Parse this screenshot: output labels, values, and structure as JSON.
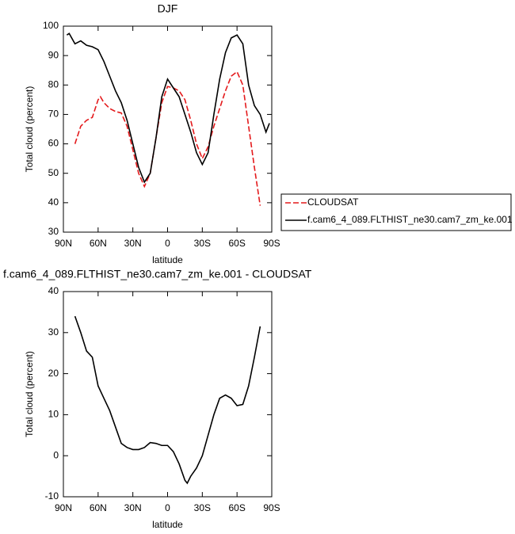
{
  "chart_data": [
    {
      "type": "line",
      "title": "DJF",
      "xlabel": "latitude",
      "ylabel": "Total cloud (percent)",
      "xlim": [
        90,
        -90
      ],
      "xticks": [
        {
          "value": 90,
          "label": "90N"
        },
        {
          "value": 60,
          "label": "60N"
        },
        {
          "value": 30,
          "label": "30N"
        },
        {
          "value": 0,
          "label": "0"
        },
        {
          "value": -30,
          "label": "30S"
        },
        {
          "value": -60,
          "label": "60S"
        },
        {
          "value": -90,
          "label": "90S"
        }
      ],
      "ylim": [
        30,
        100
      ],
      "yticks": [
        30,
        40,
        50,
        60,
        70,
        80,
        90,
        100
      ],
      "legend": "outside-right",
      "series": [
        {
          "name": "CLOUDSAT",
          "color": "#e41a1c",
          "style": "dashed",
          "x": [
            80,
            75,
            70,
            65,
            60,
            58,
            55,
            50,
            45,
            40,
            35,
            30,
            25,
            20,
            15,
            10,
            5,
            0,
            -5,
            -10,
            -15,
            -20,
            -25,
            -30,
            -35,
            -40,
            -45,
            -50,
            -55,
            -60,
            -65,
            -70,
            -75,
            -80
          ],
          "values": [
            60,
            66,
            68,
            69,
            75,
            76,
            74,
            72,
            71,
            70.5,
            66,
            58,
            50,
            45.5,
            50,
            62,
            74,
            79.5,
            79,
            78,
            75,
            68,
            60,
            55,
            59,
            66,
            72,
            78,
            83,
            84.5,
            80,
            66,
            52,
            39
          ]
        },
        {
          "name": "f.cam6_4_089.FLTHIST_ne30.cam7_zm_ke.001",
          "color": "#000000",
          "style": "solid",
          "x": [
            87,
            85,
            80,
            75,
            70,
            65,
            60,
            55,
            50,
            45,
            40,
            35,
            30,
            25,
            20,
            15,
            10,
            5,
            0,
            -5,
            -10,
            -15,
            -20,
            -25,
            -30,
            -35,
            -40,
            -45,
            -50,
            -55,
            -60,
            -65,
            -70,
            -75,
            -80,
            -85,
            -88
          ],
          "values": [
            97,
            97.5,
            94,
            95,
            93.5,
            93,
            92,
            88,
            83,
            78,
            74,
            68,
            60,
            52,
            47,
            50,
            62,
            76,
            82,
            79,
            76,
            70,
            64,
            57,
            53,
            57,
            70,
            82,
            91,
            96,
            97,
            94,
            80,
            73,
            70,
            64,
            67
          ]
        }
      ]
    },
    {
      "type": "line",
      "title": "f.cam6_4_089.FLTHIST_ne30.cam7_zm_ke.001 - CLOUDSAT",
      "xlabel": "latitude",
      "ylabel": "Total cloud (percent)",
      "xlim": [
        90,
        -90
      ],
      "xticks": [
        {
          "value": 90,
          "label": "90N"
        },
        {
          "value": 60,
          "label": "60N"
        },
        {
          "value": 30,
          "label": "30N"
        },
        {
          "value": 0,
          "label": "0"
        },
        {
          "value": -30,
          "label": "30S"
        },
        {
          "value": -60,
          "label": "60S"
        },
        {
          "value": -90,
          "label": "90S"
        }
      ],
      "ylim": [
        -10,
        40
      ],
      "yticks": [
        -10,
        0,
        10,
        20,
        30,
        40
      ],
      "color": "#000000",
      "x": [
        80,
        75,
        70,
        65,
        60,
        55,
        50,
        45,
        40,
        35,
        30,
        25,
        20,
        15,
        10,
        5,
        0,
        -5,
        -10,
        -15,
        -17,
        -20,
        -25,
        -30,
        -35,
        -40,
        -45,
        -50,
        -55,
        -60,
        -65,
        -70,
        -75,
        -80
      ],
      "values": [
        34,
        30,
        25.5,
        24,
        17,
        14,
        11,
        7,
        3,
        2,
        1.5,
        1.5,
        2,
        3.2,
        3,
        2.5,
        2.5,
        1,
        -2,
        -6,
        -6.7,
        -5,
        -3,
        0,
        5,
        10,
        14,
        14.8,
        14,
        12.2,
        12.5,
        17,
        24,
        31.5
      ]
    }
  ]
}
